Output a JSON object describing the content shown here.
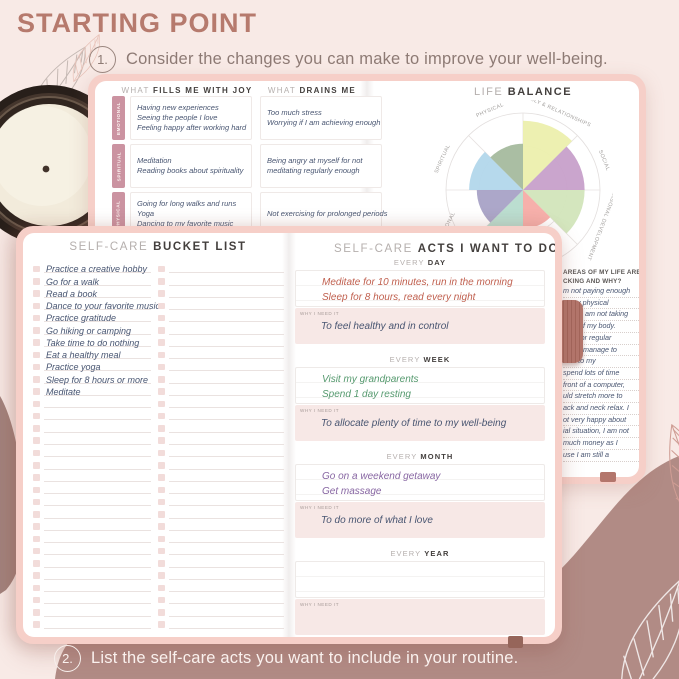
{
  "title": "STARTING POINT",
  "steps": [
    {
      "number": "1.",
      "text": "Consider the changes you can make to improve your well-being."
    },
    {
      "number": "2.",
      "text": "List the self-care acts you want to include in your routine."
    }
  ],
  "journal_top": {
    "joy_header_light": "WHAT",
    "joy_header_bold": "FILLS ME WITH JOY",
    "drains_header_light": "WHAT",
    "drains_header_bold": "DRAINS ME",
    "rows": [
      {
        "category": "EMOTIONAL",
        "joy": [
          "Having new experiences",
          "Seeing the people I love",
          "Feeling happy after working hard"
        ],
        "drains": [
          "Too much stress",
          "Worrying if I am achieving enough"
        ]
      },
      {
        "category": "SPIRITUAL",
        "joy": [
          "Meditation",
          "Reading books about spirituality"
        ],
        "drains": [
          "Being angry at myself for not",
          "meditating regularly enough"
        ]
      },
      {
        "category": "PHYSICAL",
        "joy": [
          "Going for long walks and runs",
          "Yoga",
          "Dancing to my favorite music"
        ],
        "drains": [
          "Not exercising for prolonged periods"
        ]
      }
    ],
    "life_balance_light": "LIFE",
    "life_balance_bold": "BALANCE",
    "lacking_fragment": {
      "heading_lines": [
        "AREAS OF MY LIFE ARE",
        "CKING AND WHY?"
      ],
      "lines": [
        "m not paying enough",
        "to my physical",
        ", and I am not taking",
        "care of my body.",
        "time for regular",
        "rarely manage to",
        "Due to my",
        "spend lots of time",
        "front of a computer,",
        "uld stretch more to",
        "ack and neck relax. I",
        "ot very happy about",
        "ial situation, I am not",
        "much money as I",
        "use I am still a"
      ]
    }
  },
  "chart_data": {
    "type": "pie",
    "title": "LIFE BALANCE",
    "scale_max": 10,
    "legend_position": "around-wheel",
    "segments": [
      {
        "label": "FAMILY & RELATIONSHIPS",
        "start": 0,
        "end": 45,
        "value": 9,
        "color": "#ecefad",
        "label_angle": 22.5,
        "label_rotation": 24
      },
      {
        "label": "SOCIAL",
        "start": 45,
        "end": 90,
        "value": 8,
        "color": "#c7a0ca",
        "label_angle": 70,
        "label_rotation": 68
      },
      {
        "label": "PERSONAL DEVELOPMENT",
        "start": 90,
        "end": 135,
        "value": 8,
        "color": "#d2e5ba",
        "label_angle": 113,
        "label_rotation": 111
      },
      {
        "label": "",
        "start": 135,
        "end": 180,
        "value": 5,
        "color": "#f6aca6",
        "label_angle": null,
        "label_rotation": null
      },
      {
        "label": "",
        "start": 180,
        "end": 225,
        "value": 7,
        "color": "#b7dccd",
        "label_angle": null,
        "label_rotation": null
      },
      {
        "label": "EMOTIONAL",
        "start": 225,
        "end": 270,
        "value": 6,
        "color": "#a8a2c6",
        "label_angle": 243,
        "label_rotation": -63
      },
      {
        "label": "SPIRITUAL",
        "start": 270,
        "end": 315,
        "value": 7,
        "color": "#b2d7eb",
        "label_angle": 291,
        "label_rotation": -66
      },
      {
        "label": "PHYSICAL",
        "start": 315,
        "end": 360,
        "value": 6,
        "color": "#a5bb9e",
        "label_angle": 337.5,
        "label_rotation": -23
      }
    ]
  },
  "journal_bottom": {
    "bucket_header_light": "SELF-CARE",
    "bucket_header_bold": "BUCKET LIST",
    "bucket_items": [
      "Practice a creative hobby",
      "Go for a walk",
      "Read a book",
      "Dance to your favorite music",
      "Practice gratitude",
      "Go hiking or camping",
      "Take time to do nothing",
      "Eat a healthy meal",
      "Practice yoga",
      "Sleep for 8 hours or more",
      "Meditate"
    ],
    "rows_per_column": 30,
    "acts_header_light": "SELF-CARE",
    "acts_header_bold": "ACTS I WANT TO DO",
    "why_label": "WHY I NEED IT",
    "sections": [
      {
        "period_light": "EVERY",
        "period_bold": "DAY",
        "acts": [
          "Meditate for 10 minutes, run in the morning",
          "Sleep for 8 hours, read every night"
        ],
        "acts_color": "#c0604f",
        "why": "To feel healthy and in control"
      },
      {
        "period_light": "EVERY",
        "period_bold": "WEEK",
        "acts": [
          "Visit my grandparents",
          "Spend 1 day resting"
        ],
        "acts_color": "#55996e",
        "why": "To allocate plenty of time to my well-being"
      },
      {
        "period_light": "EVERY",
        "period_bold": "MONTH",
        "acts": [
          "Go on a weekend getaway",
          "Get massage"
        ],
        "acts_color": "#8766a2",
        "why": "To do more of what I love"
      },
      {
        "period_light": "EVERY",
        "period_bold": "YEAR",
        "acts": [],
        "acts_color": "#c0604f",
        "why": ""
      }
    ]
  },
  "colors": {
    "background": "#f8eae6",
    "blob": "#b18b85",
    "blob_dark_wedge": "#a2837d",
    "title": "#b67a6d",
    "journal_cover": "#f6cfc8",
    "category_tab": "#cb93a1",
    "handwriting": "#485571",
    "why_box": "#f7e8e6",
    "elastic": "#b3766c"
  }
}
